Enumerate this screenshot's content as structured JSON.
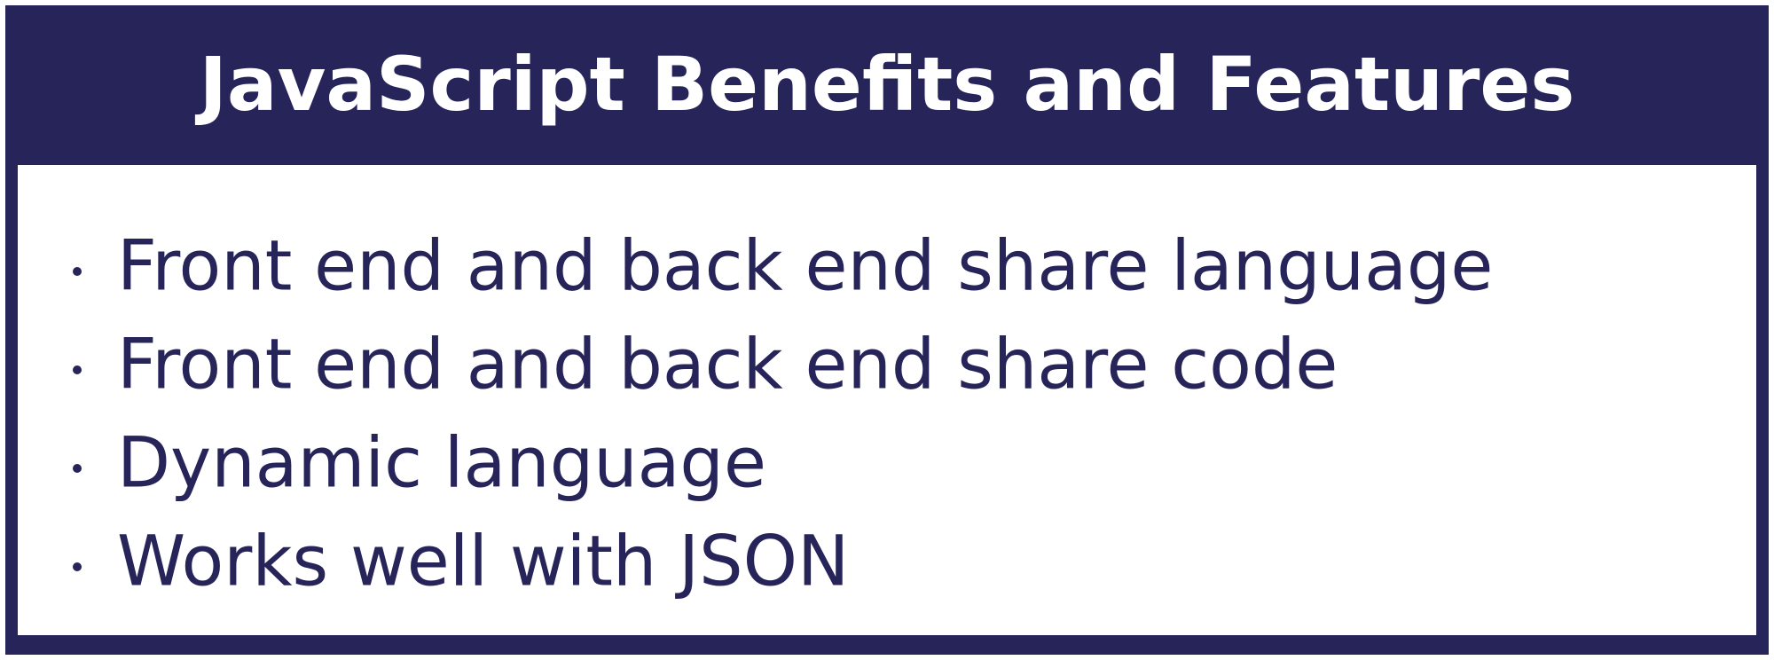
{
  "slide": {
    "title": "JavaScript Benefits and Features",
    "bullets": [
      "Front end and back end share language",
      "Front end and back end share code",
      "Dynamic language",
      "Works well with JSON"
    ],
    "colors": {
      "primary": "#27245a",
      "background": "#ffffff",
      "title_text": "#ffffff"
    }
  }
}
